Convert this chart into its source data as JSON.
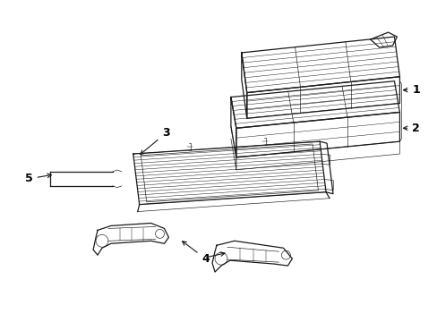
{
  "background_color": "#ffffff",
  "line_color": "#1a1a1a",
  "label_color": "#000000",
  "lw_main": 0.9,
  "lw_thin": 0.45,
  "lw_quilt": 0.35
}
